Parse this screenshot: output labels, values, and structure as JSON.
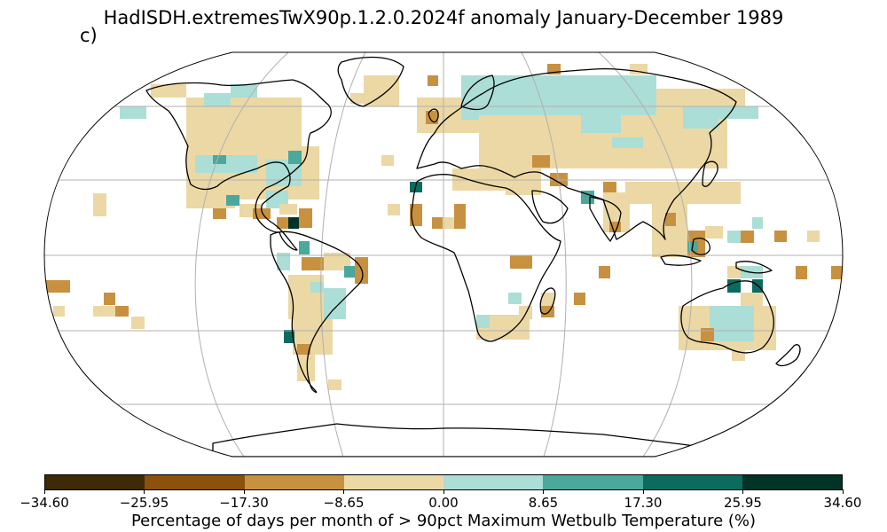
{
  "title": "HadISDH.extremesTwX90p.1.2.0.2024f anomaly January-December 1989",
  "panel_label": "c)",
  "colorbar": {
    "label": "Percentage of days per month of > 90pct Maximum Wetbulb Temperature (%)",
    "ticks": [
      "−34.60",
      "−25.95",
      "−17.30",
      "−8.65",
      "0.00",
      "8.65",
      "17.30",
      "25.95",
      "34.60"
    ],
    "colors": [
      "#3f2a08",
      "#8c510a",
      "#c8913f",
      "#ecd8a4",
      "#abded6",
      "#4aa89c",
      "#0b6b5f",
      "#013326"
    ]
  },
  "map": {
    "projection": "robinson",
    "gridlines": true,
    "ocean_color": "#ffffff",
    "coastline_color": "#000000"
  }
}
